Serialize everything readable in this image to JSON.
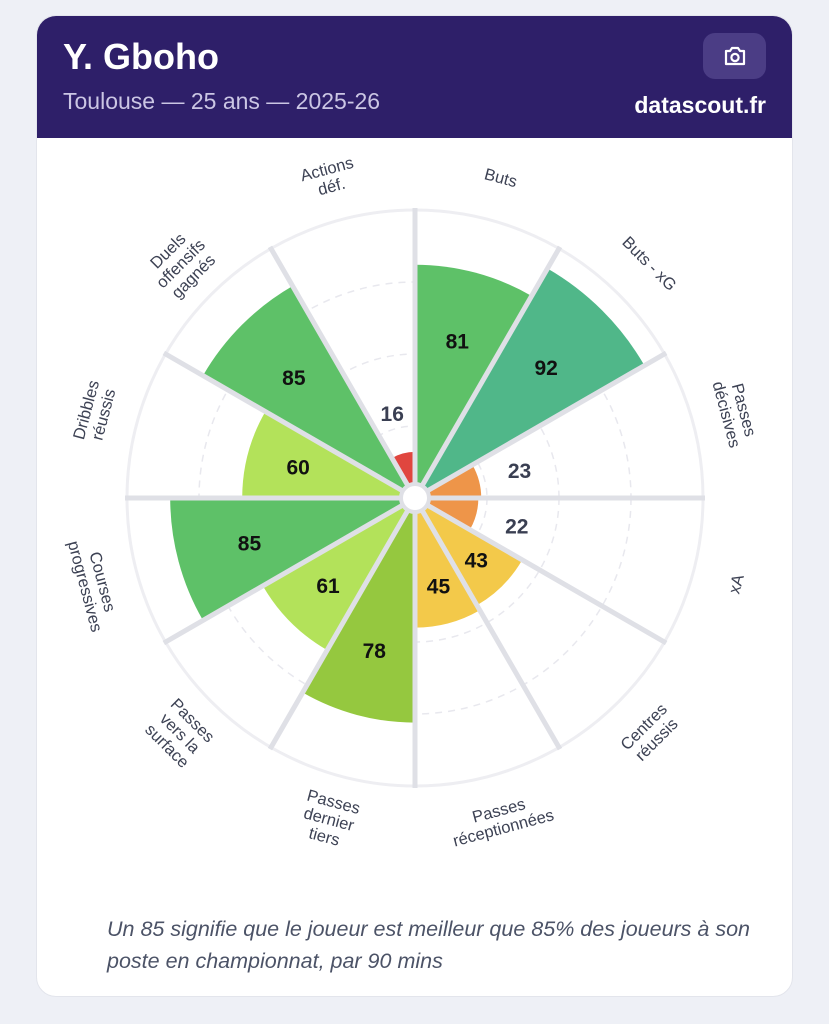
{
  "header": {
    "player": "Y. Gboho",
    "subtitle": "Toulouse — 25 ans — 2025-26",
    "brand": "datascout.fr",
    "camera_icon": "camera-icon"
  },
  "footer": {
    "note": "Un 85 signifie que le joueur est meilleur que 85% des joueurs à son poste en championnat, par 90 mins"
  },
  "chart_data": {
    "type": "pizza",
    "range": [
      0,
      100
    ],
    "grid_rings": [
      25,
      50,
      75
    ],
    "categories": [
      "Buts",
      "Buts - xG",
      "Passes décisives",
      "xA",
      "Centres réussis",
      "Passes réceptionnées",
      "Passes dernier tiers",
      "Passes vers la surface",
      "Courses progressives",
      "Dribbles réussis",
      "Duels offensifs gagnés",
      "Actions déf."
    ],
    "label_lines": [
      [
        "Buts"
      ],
      [
        "Buts - xG"
      ],
      [
        "Passes",
        "décisives"
      ],
      [
        "xA"
      ],
      [
        "Centres",
        "réussis"
      ],
      [
        "Passes",
        "réceptionnées"
      ],
      [
        "Passes",
        "dernier",
        "tiers"
      ],
      [
        "Passes",
        "vers la",
        "surface"
      ],
      [
        "Courses",
        "progressives"
      ],
      [
        "Dribbles",
        "réussis"
      ],
      [
        "Duels",
        "offensifs",
        "gagnés"
      ],
      [
        "Actions",
        "déf."
      ]
    ],
    "values": [
      81,
      92,
      23,
      22,
      43,
      45,
      78,
      61,
      85,
      60,
      85,
      16
    ],
    "colors": {
      "red": "#e0463f",
      "orange": "#ee9549",
      "yellow": "#f3c94a",
      "lightgreen": "#b3e25a",
      "midgreen": "#95c83f",
      "green": "#5ec168",
      "teal": "#50b789"
    }
  }
}
